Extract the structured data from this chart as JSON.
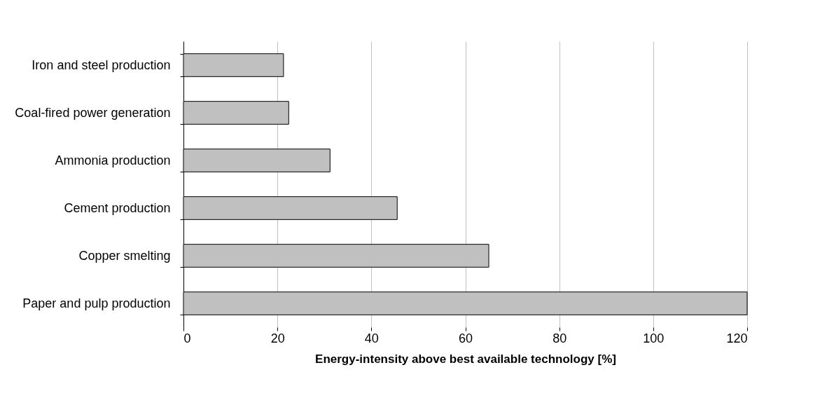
{
  "chart_data": {
    "type": "bar",
    "orientation": "horizontal",
    "categories": [
      "Iron and steel production",
      "Coal-fired power generation",
      "Ammonia production",
      "Cement production",
      "Copper smelting",
      "Paper and pulp production"
    ],
    "values": [
      21.3,
      22.4,
      31.2,
      45.5,
      65,
      120
    ],
    "color": "#c0c0c0",
    "xlim": [
      0,
      120
    ],
    "xticks": [
      0,
      20,
      40,
      60,
      80,
      100,
      120
    ],
    "xlabel": "Energy-intensity above best available technology [%]",
    "grid": "x"
  }
}
